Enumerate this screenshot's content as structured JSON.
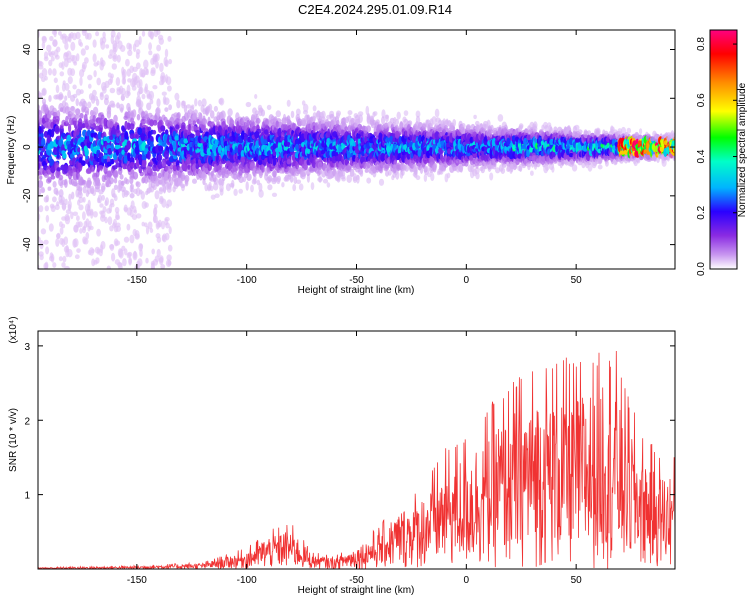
{
  "title": "C2E4.2024.295.01.09.R14",
  "chart_data": [
    {
      "type": "heatmap",
      "xlabel": "Height of straight line (km)",
      "ylabel": "Frequency (Hz)",
      "xlim": [
        -195,
        95
      ],
      "ylim": [
        -50,
        48
      ],
      "xticks": [
        -150,
        -100,
        -50,
        0,
        50
      ],
      "yticks": [
        -40,
        -20,
        0,
        20,
        40
      ],
      "colorbar": {
        "label": "Normalized spectral amplitude",
        "range": [
          0,
          0.85
        ],
        "ticks": [
          "0.0",
          "0.2",
          "0.4",
          "0.6",
          "0.8"
        ],
        "colors": [
          "#ffffff",
          "#c896f0",
          "#8a2be2",
          "#2a00ff",
          "#00b4ff",
          "#00ffc8",
          "#00ff00",
          "#ffff00",
          "#ff8c00",
          "#ff0000",
          "#ff0080"
        ]
      },
      "description_values": {
        "ridge_center_hz": 0,
        "ridge_halfwidth_hz_at_-140km": 12,
        "ridge_halfwidth_hz_at_80km": 3,
        "peak_amplitude": 0.82,
        "peak_height_km": 80
      }
    },
    {
      "type": "line",
      "xlabel": "Height of straight line (km)",
      "ylabel": "SNR (10 * v/v)",
      "y_multiplier": "(x10⁴)",
      "xlim": [
        -195,
        95
      ],
      "ylim": [
        0,
        3.2
      ],
      "xticks": [
        -150,
        -100,
        -50,
        0,
        50
      ],
      "yticks": [
        1,
        2,
        3
      ],
      "color": "#f03232",
      "envelope_x": [
        -195,
        -150,
        -120,
        -100,
        -90,
        -80,
        -70,
        -60,
        -50,
        -40,
        -30,
        -20,
        -10,
        0,
        10,
        20,
        30,
        40,
        50,
        60,
        65,
        70,
        80,
        90,
        95
      ],
      "envelope_y": [
        0.02,
        0.04,
        0.08,
        0.25,
        0.45,
        0.55,
        0.2,
        0.15,
        0.3,
        0.5,
        0.8,
        1.0,
        1.4,
        1.6,
        1.9,
        2.2,
        2.4,
        2.5,
        2.45,
        2.5,
        3.1,
        2.3,
        1.6,
        1.3,
        1.35
      ]
    }
  ]
}
